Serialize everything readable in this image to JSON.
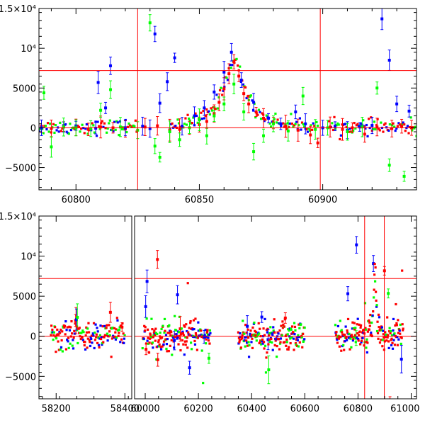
{
  "chart_data": [
    {
      "type": "scatter",
      "panel": "top",
      "title": "",
      "xlabel": "",
      "ylabel": "",
      "xlim": [
        60785,
        60938
      ],
      "ylim": [
        -7800,
        15000
      ],
      "x_ticks": [
        {
          "v": 60800,
          "label": "60800"
        },
        {
          "v": 60850,
          "label": "60850"
        },
        {
          "v": 60900,
          "label": "60900"
        }
      ],
      "y_ticks": [
        {
          "v": -5000,
          "label": "−5000"
        },
        {
          "v": 0,
          "label": "0"
        },
        {
          "v": 5000,
          "label": "5000"
        },
        {
          "v": 10000,
          "label": "10⁴"
        },
        {
          "v": 15000,
          "label": "1.5×10⁴"
        }
      ],
      "reference_lines": {
        "horizontal": [
          0,
          7200
        ],
        "vertical": [
          60825,
          60899
        ]
      },
      "colors": {
        "series_a": "#0000ff",
        "series_b": "#00ff00",
        "series_c": "#ff0000",
        "reference": "#ff0000"
      },
      "series": [
        {
          "color": "#ff0000",
          "points": [
            [
              60786,
              200
            ],
            [
              60790,
              -100
            ],
            [
              60795,
              150
            ],
            [
              60800,
              50
            ],
            [
              60805,
              -200
            ],
            [
              60810,
              100
            ],
            [
              60815,
              0
            ],
            [
              60820,
              -150
            ],
            [
              60828,
              100
            ],
            [
              60833,
              250
            ],
            [
              60838,
              -300
            ],
            [
              60842,
              -200
            ],
            [
              60846,
              0
            ],
            [
              60850,
              400
            ],
            [
              60853,
              800
            ],
            [
              60856,
              1800
            ],
            [
              60858,
              3200
            ],
            [
              60860,
              4900
            ],
            [
              60862,
              6800
            ],
            [
              60864,
              8300
            ],
            [
              60866,
              6500
            ],
            [
              60868,
              4300
            ],
            [
              60870,
              3000
            ],
            [
              60873,
              2000
            ],
            [
              60876,
              1200
            ],
            [
              60880,
              600
            ],
            [
              60885,
              200
            ],
            [
              60890,
              -300
            ],
            [
              60895,
              -900
            ],
            [
              60898,
              -1900
            ],
            [
              60903,
              100
            ],
            [
              60908,
              -200
            ],
            [
              60912,
              0
            ],
            [
              60917,
              -800
            ],
            [
              60922,
              100
            ],
            [
              60928,
              -100
            ],
            [
              60932,
              200
            ],
            [
              60936,
              0
            ]
          ]
        },
        {
          "color": "#0000ff",
          "points": [
            [
              60786,
              0
            ],
            [
              60795,
              100
            ],
            [
              60800,
              250
            ],
            [
              60808,
              -50
            ],
            [
              60809,
              5700
            ],
            [
              60812,
              2500
            ],
            [
              60814,
              7800
            ],
            [
              60820,
              0
            ],
            [
              60827,
              200
            ],
            [
              60830,
              -100
            ],
            [
              60832,
              11800
            ],
            [
              60834,
              3100
            ],
            [
              60837,
              5800
            ],
            [
              60840,
              8800
            ],
            [
              60843,
              200
            ],
            [
              60848,
              1500
            ],
            [
              60852,
              2500
            ],
            [
              60856,
              4500
            ],
            [
              60860,
              7000
            ],
            [
              60863,
              9500
            ],
            [
              60867,
              6000
            ],
            [
              60872,
              3200
            ],
            [
              60878,
              1200
            ],
            [
              60883,
              500
            ],
            [
              60889,
              2000
            ],
            [
              60893,
              500
            ],
            [
              60900,
              0
            ],
            [
              60905,
              200
            ],
            [
              60910,
              -300
            ],
            [
              60915,
              100
            ],
            [
              60920,
              300
            ],
            [
              60924,
              13700
            ],
            [
              60927,
              8500
            ],
            [
              60930,
              3000
            ],
            [
              60935,
              2100
            ]
          ]
        },
        {
          "color": "#00ff00",
          "points": [
            [
              60787,
              4400
            ],
            [
              60790,
              -2400
            ],
            [
              60795,
              100
            ],
            [
              60800,
              0
            ],
            [
              60806,
              -100
            ],
            [
              60810,
              2200
            ],
            [
              60814,
              4800
            ],
            [
              60818,
              100
            ],
            [
              60825,
              -300
            ],
            [
              60830,
              13200
            ],
            [
              60832,
              -2300
            ],
            [
              60834,
              -3700
            ],
            [
              60838,
              -500
            ],
            [
              60842,
              -1500
            ],
            [
              60846,
              0
            ],
            [
              60850,
              1000
            ],
            [
              60853,
              -1000
            ],
            [
              60856,
              1500
            ],
            [
              60860,
              3000
            ],
            [
              60864,
              5500
            ],
            [
              60868,
              2000
            ],
            [
              60872,
              -3000
            ],
            [
              60876,
              -1000
            ],
            [
              60880,
              500
            ],
            [
              60886,
              -400
            ],
            [
              60892,
              4000
            ],
            [
              60897,
              -200
            ],
            [
              60902,
              0
            ],
            [
              60910,
              -500
            ],
            [
              60916,
              100
            ],
            [
              60922,
              5000
            ],
            [
              60927,
              -4700
            ],
            [
              60933,
              -6100
            ]
          ]
        }
      ]
    },
    {
      "type": "scatter",
      "panel": "bottom",
      "title": "",
      "xlabel": "",
      "ylabel": "",
      "xlim_left": [
        58150,
        58420
      ],
      "xlim_right": [
        59960,
        61020
      ],
      "ylim": [
        -7800,
        15000
      ],
      "x_ticks": [
        {
          "v": 58200,
          "label": "58200",
          "seg": 0
        },
        {
          "v": 58400,
          "label": "58400",
          "seg": 0
        },
        {
          "v": 60000,
          "label": "60000",
          "seg": 1
        },
        {
          "v": 60200,
          "label": "60200",
          "seg": 1
        },
        {
          "v": 60400,
          "label": "60400",
          "seg": 1
        },
        {
          "v": 60600,
          "label": "60600",
          "seg": 1
        },
        {
          "v": 60800,
          "label": "60800",
          "seg": 1
        },
        {
          "v": 61000,
          "label": "61000",
          "seg": 1
        }
      ],
      "y_ticks": [
        {
          "v": -5000,
          "label": "−5000"
        },
        {
          "v": 0,
          "label": "0"
        },
        {
          "v": 5000,
          "label": "5000"
        },
        {
          "v": 10000,
          "label": "10⁴"
        },
        {
          "v": 15000,
          "label": "1.5×10⁴"
        }
      ],
      "reference_lines": {
        "horizontal": [
          0,
          7200
        ],
        "vertical": [
          60825,
          60899
        ]
      },
      "observing_seasons": [
        [
          58185,
          58400
        ],
        [
          59990,
          60245
        ],
        [
          60350,
          60600
        ],
        [
          60715,
          60970
        ]
      ],
      "colors": {
        "series_a": "#0000ff",
        "series_b": "#00ff00",
        "series_c": "#ff0000",
        "reference": "#ff0000"
      },
      "peak": {
        "x": 60864,
        "y": 8300
      }
    }
  ]
}
